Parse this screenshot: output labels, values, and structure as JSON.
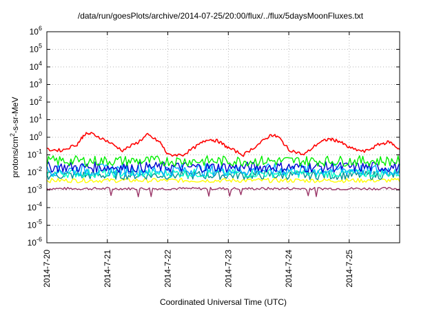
{
  "chart_data": {
    "type": "line",
    "title": "/data/run/goesPlots/archive/2014-07-25/20:00/flux/../flux/5daysMoonFluxes.txt",
    "xlabel": "Coordinated Universal Time (UTC)",
    "ylabel": "protons/cm²-s-sr-MeV",
    "y_scale": "log",
    "ylim": [
      1e-06,
      1000000.0
    ],
    "xlim": [
      "2014-07-20",
      "2014-07-25T20:00"
    ],
    "grid": true,
    "x_ticks": [
      "2014-7-20",
      "2014-7-21",
      "2014-7-22",
      "2014-7-23",
      "2014-7-24",
      "2014-7-25"
    ],
    "y_ticks": [
      {
        "base": "10",
        "exp": "-6"
      },
      {
        "base": "10",
        "exp": "-5"
      },
      {
        "base": "10",
        "exp": "-4"
      },
      {
        "base": "10",
        "exp": "-3"
      },
      {
        "base": "10",
        "exp": "-2"
      },
      {
        "base": "10",
        "exp": "-1"
      },
      {
        "base": "10",
        "exp": "0"
      },
      {
        "base": "10",
        "exp": "1"
      },
      {
        "base": "10",
        "exp": "2"
      },
      {
        "base": "10",
        "exp": "3"
      },
      {
        "base": "10",
        "exp": "4"
      },
      {
        "base": "10",
        "exp": "5"
      },
      {
        "base": "10",
        "exp": "6"
      }
    ],
    "series": [
      {
        "color": "#ff0000",
        "points": [
          [
            "2014-07-20T00:00",
            0.2
          ],
          [
            "2014-07-20T06:00",
            0.18
          ],
          [
            "2014-07-20T12:00",
            0.4
          ],
          [
            "2014-07-20T15:00",
            1.5
          ],
          [
            "2014-07-20T18:00",
            1.6
          ],
          [
            "2014-07-21T00:00",
            0.6
          ],
          [
            "2014-07-21T06:00",
            0.18
          ],
          [
            "2014-07-21T12:00",
            0.5
          ],
          [
            "2014-07-21T16:00",
            1.4
          ],
          [
            "2014-07-21T21:00",
            0.5
          ],
          [
            "2014-07-22T00:00",
            0.1
          ],
          [
            "2014-07-22T06:00",
            0.1
          ],
          [
            "2014-07-22T12:00",
            0.35
          ],
          [
            "2014-07-22T16:00",
            0.8
          ],
          [
            "2014-07-22T20:00",
            0.6
          ],
          [
            "2014-07-23T00:00",
            0.25
          ],
          [
            "2014-07-23T06:00",
            0.1
          ],
          [
            "2014-07-23T12:00",
            0.4
          ],
          [
            "2014-07-23T17:00",
            1.4
          ],
          [
            "2014-07-23T20:00",
            1.0
          ],
          [
            "2014-07-24T00:00",
            0.2
          ],
          [
            "2014-07-24T06:00",
            0.1
          ],
          [
            "2014-07-24T12:00",
            0.5
          ],
          [
            "2014-07-24T16:00",
            0.8
          ],
          [
            "2014-07-24T20:00",
            0.6
          ],
          [
            "2014-07-25T00:00",
            0.25
          ],
          [
            "2014-07-25T06:00",
            0.15
          ],
          [
            "2014-07-25T12:00",
            0.4
          ],
          [
            "2014-07-25T16:00",
            0.55
          ],
          [
            "2014-07-25T20:00",
            0.2
          ]
        ]
      },
      {
        "color": "#00ee00",
        "baseline": 0.045,
        "jitter": 0.6
      },
      {
        "color": "#00aaff",
        "baseline": 0.014,
        "jitter": 0.7
      },
      {
        "color": "#0000cc",
        "baseline": 0.02,
        "jitter": 0.6
      },
      {
        "color": "#00ffcc",
        "baseline": 0.009,
        "jitter": 0.5
      },
      {
        "color": "#009090",
        "baseline": 0.007,
        "jitter": 0.5
      },
      {
        "color": "#ffff00",
        "baseline": 0.0035,
        "jitter": 0.25
      },
      {
        "color": "#993366",
        "baseline": 0.0012,
        "jitter": 0.15
      }
    ]
  }
}
